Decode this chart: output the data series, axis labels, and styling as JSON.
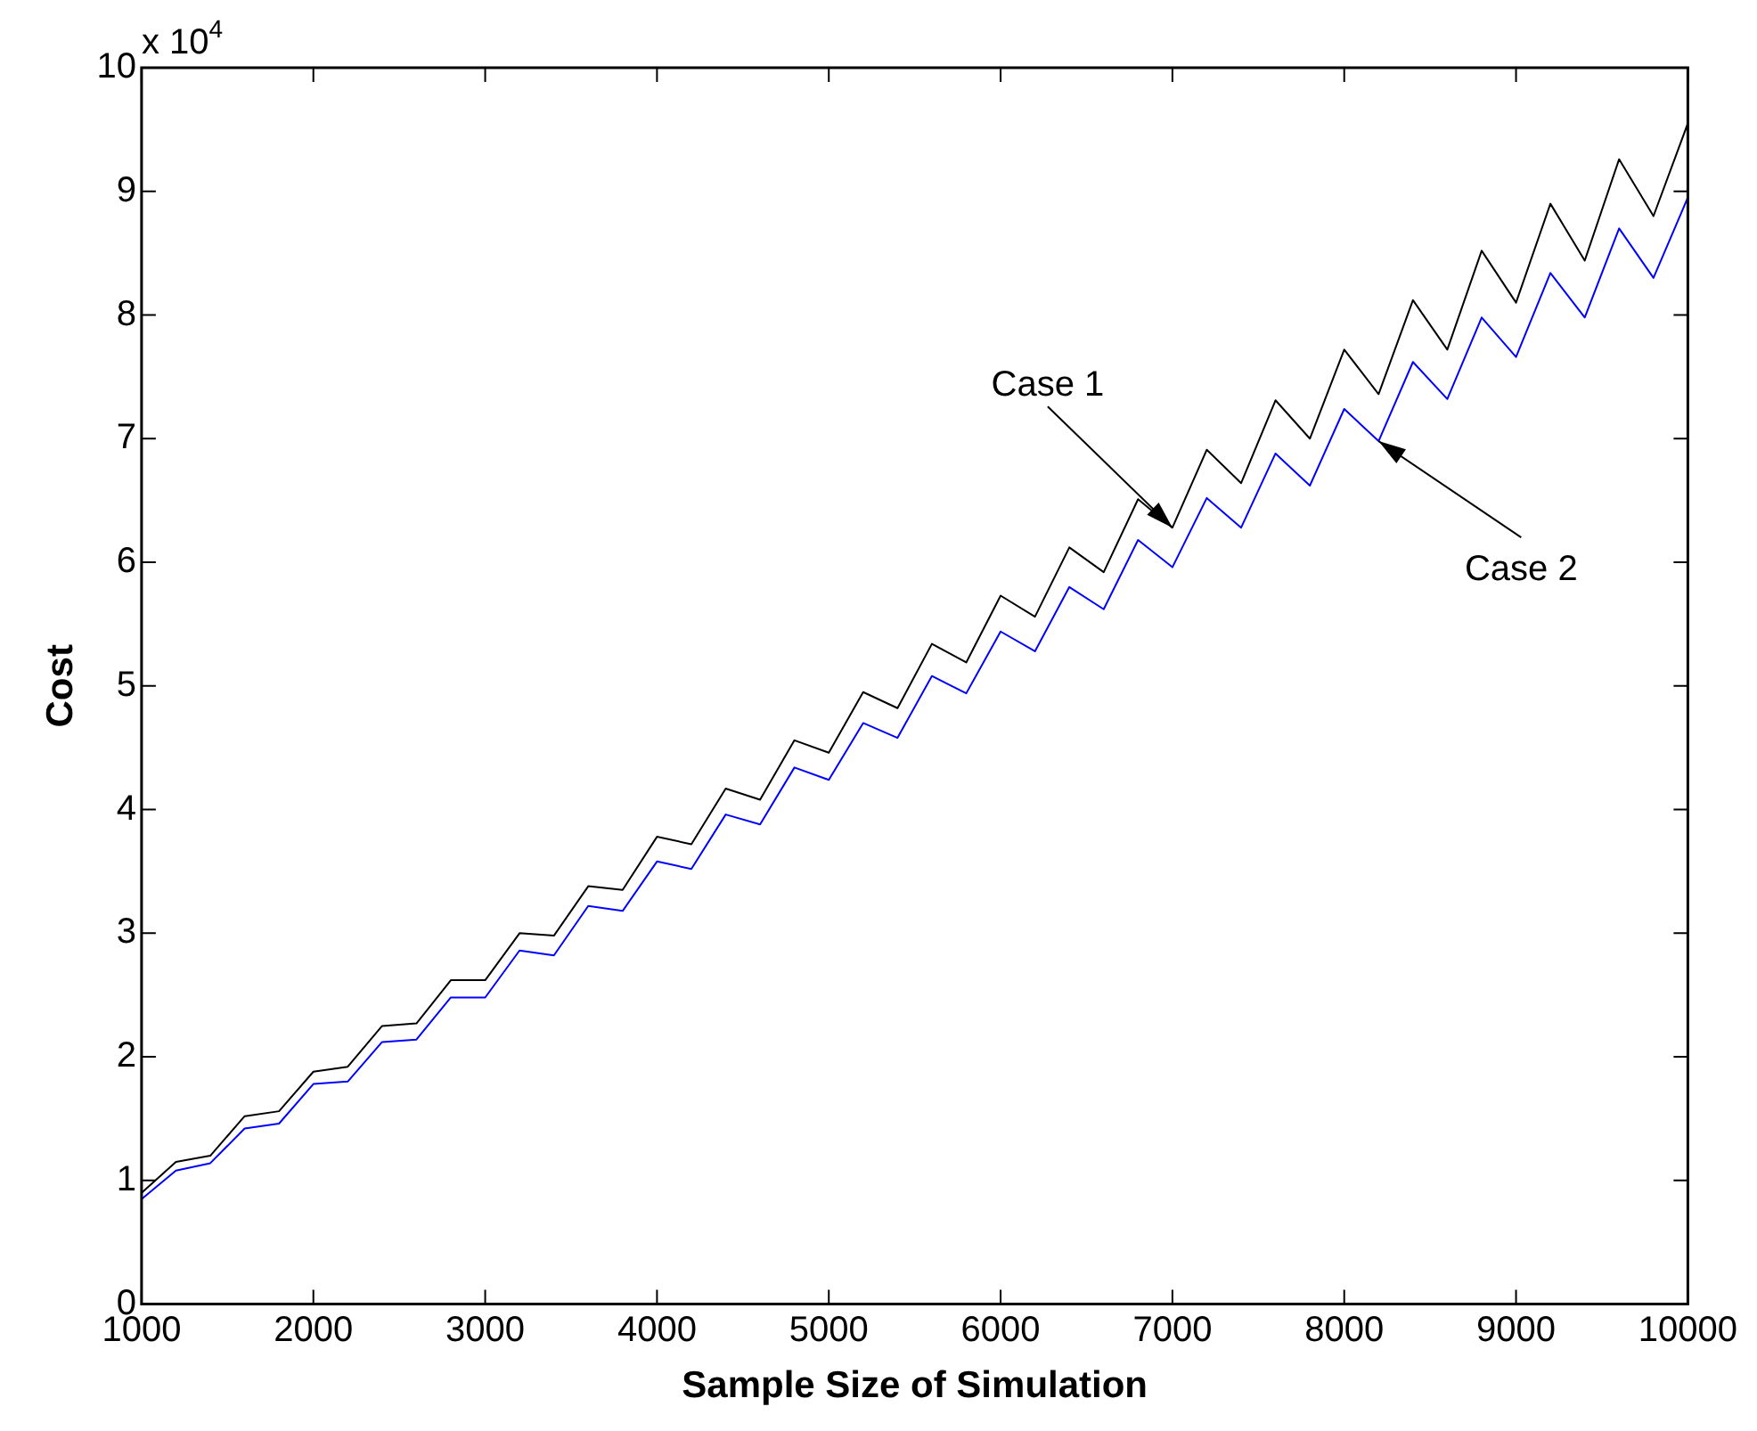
{
  "chart_data": {
    "type": "line",
    "xlabel": "Sample Size of Simulation",
    "ylabel": "Cost",
    "x": [
      1000,
      1200,
      1400,
      1600,
      1800,
      2000,
      2200,
      2400,
      2600,
      2800,
      3000,
      3200,
      3400,
      3600,
      3800,
      4000,
      4200,
      4400,
      4600,
      4800,
      5000,
      5200,
      5400,
      5600,
      5800,
      6000,
      6200,
      6400,
      6600,
      6800,
      7000,
      7200,
      7400,
      7600,
      7800,
      8000,
      8200,
      8400,
      8600,
      8800,
      9000,
      9200,
      9400,
      9600,
      9800,
      10000
    ],
    "series": [
      {
        "color": "#000000",
        "values": [
          0.9,
          1.15,
          1.2,
          1.52,
          1.56,
          1.88,
          1.92,
          2.25,
          2.27,
          2.62,
          2.62,
          3.0,
          2.98,
          3.38,
          3.35,
          3.78,
          3.72,
          4.17,
          4.08,
          4.56,
          4.46,
          4.95,
          4.82,
          5.34,
          5.19,
          5.73,
          5.56,
          6.12,
          5.92,
          6.51,
          6.28,
          6.91,
          6.64,
          7.31,
          7.0,
          7.72,
          7.36,
          8.12,
          7.72,
          8.52,
          8.1,
          8.9,
          8.44,
          9.26,
          8.8,
          9.55
        ]
      },
      {
        "color": "#0000ff",
        "values": [
          0.85,
          1.08,
          1.14,
          1.42,
          1.46,
          1.78,
          1.8,
          2.12,
          2.14,
          2.48,
          2.48,
          2.86,
          2.82,
          3.22,
          3.18,
          3.58,
          3.52,
          3.96,
          3.88,
          4.34,
          4.24,
          4.7,
          4.58,
          5.08,
          4.94,
          5.44,
          5.28,
          5.8,
          5.62,
          6.18,
          5.96,
          6.52,
          6.28,
          6.88,
          6.62,
          7.24,
          6.98,
          7.62,
          7.32,
          7.98,
          7.66,
          8.34,
          7.98,
          8.7,
          8.3,
          8.95
        ]
      }
    ],
    "xlim": [
      1000,
      10000
    ],
    "xticks": [
      1000,
      2000,
      3000,
      4000,
      5000,
      6000,
      7000,
      8000,
      9000,
      10000
    ],
    "ylim": [
      0,
      10
    ],
    "yticks": [
      0,
      1,
      2,
      3,
      4,
      5,
      6,
      7,
      8,
      9,
      10
    ],
    "annotations": [
      "x 10$^{4}$",
      {
        "text": "Case 1",
        "x": 7000,
        "y": 6.28
      },
      {
        "text": "Case 2",
        "x": 8200,
        "y": 6.98
      }
    ],
    "grid": false,
    "legend": false,
    "marker": "none",
    "line_style": "solid"
  }
}
